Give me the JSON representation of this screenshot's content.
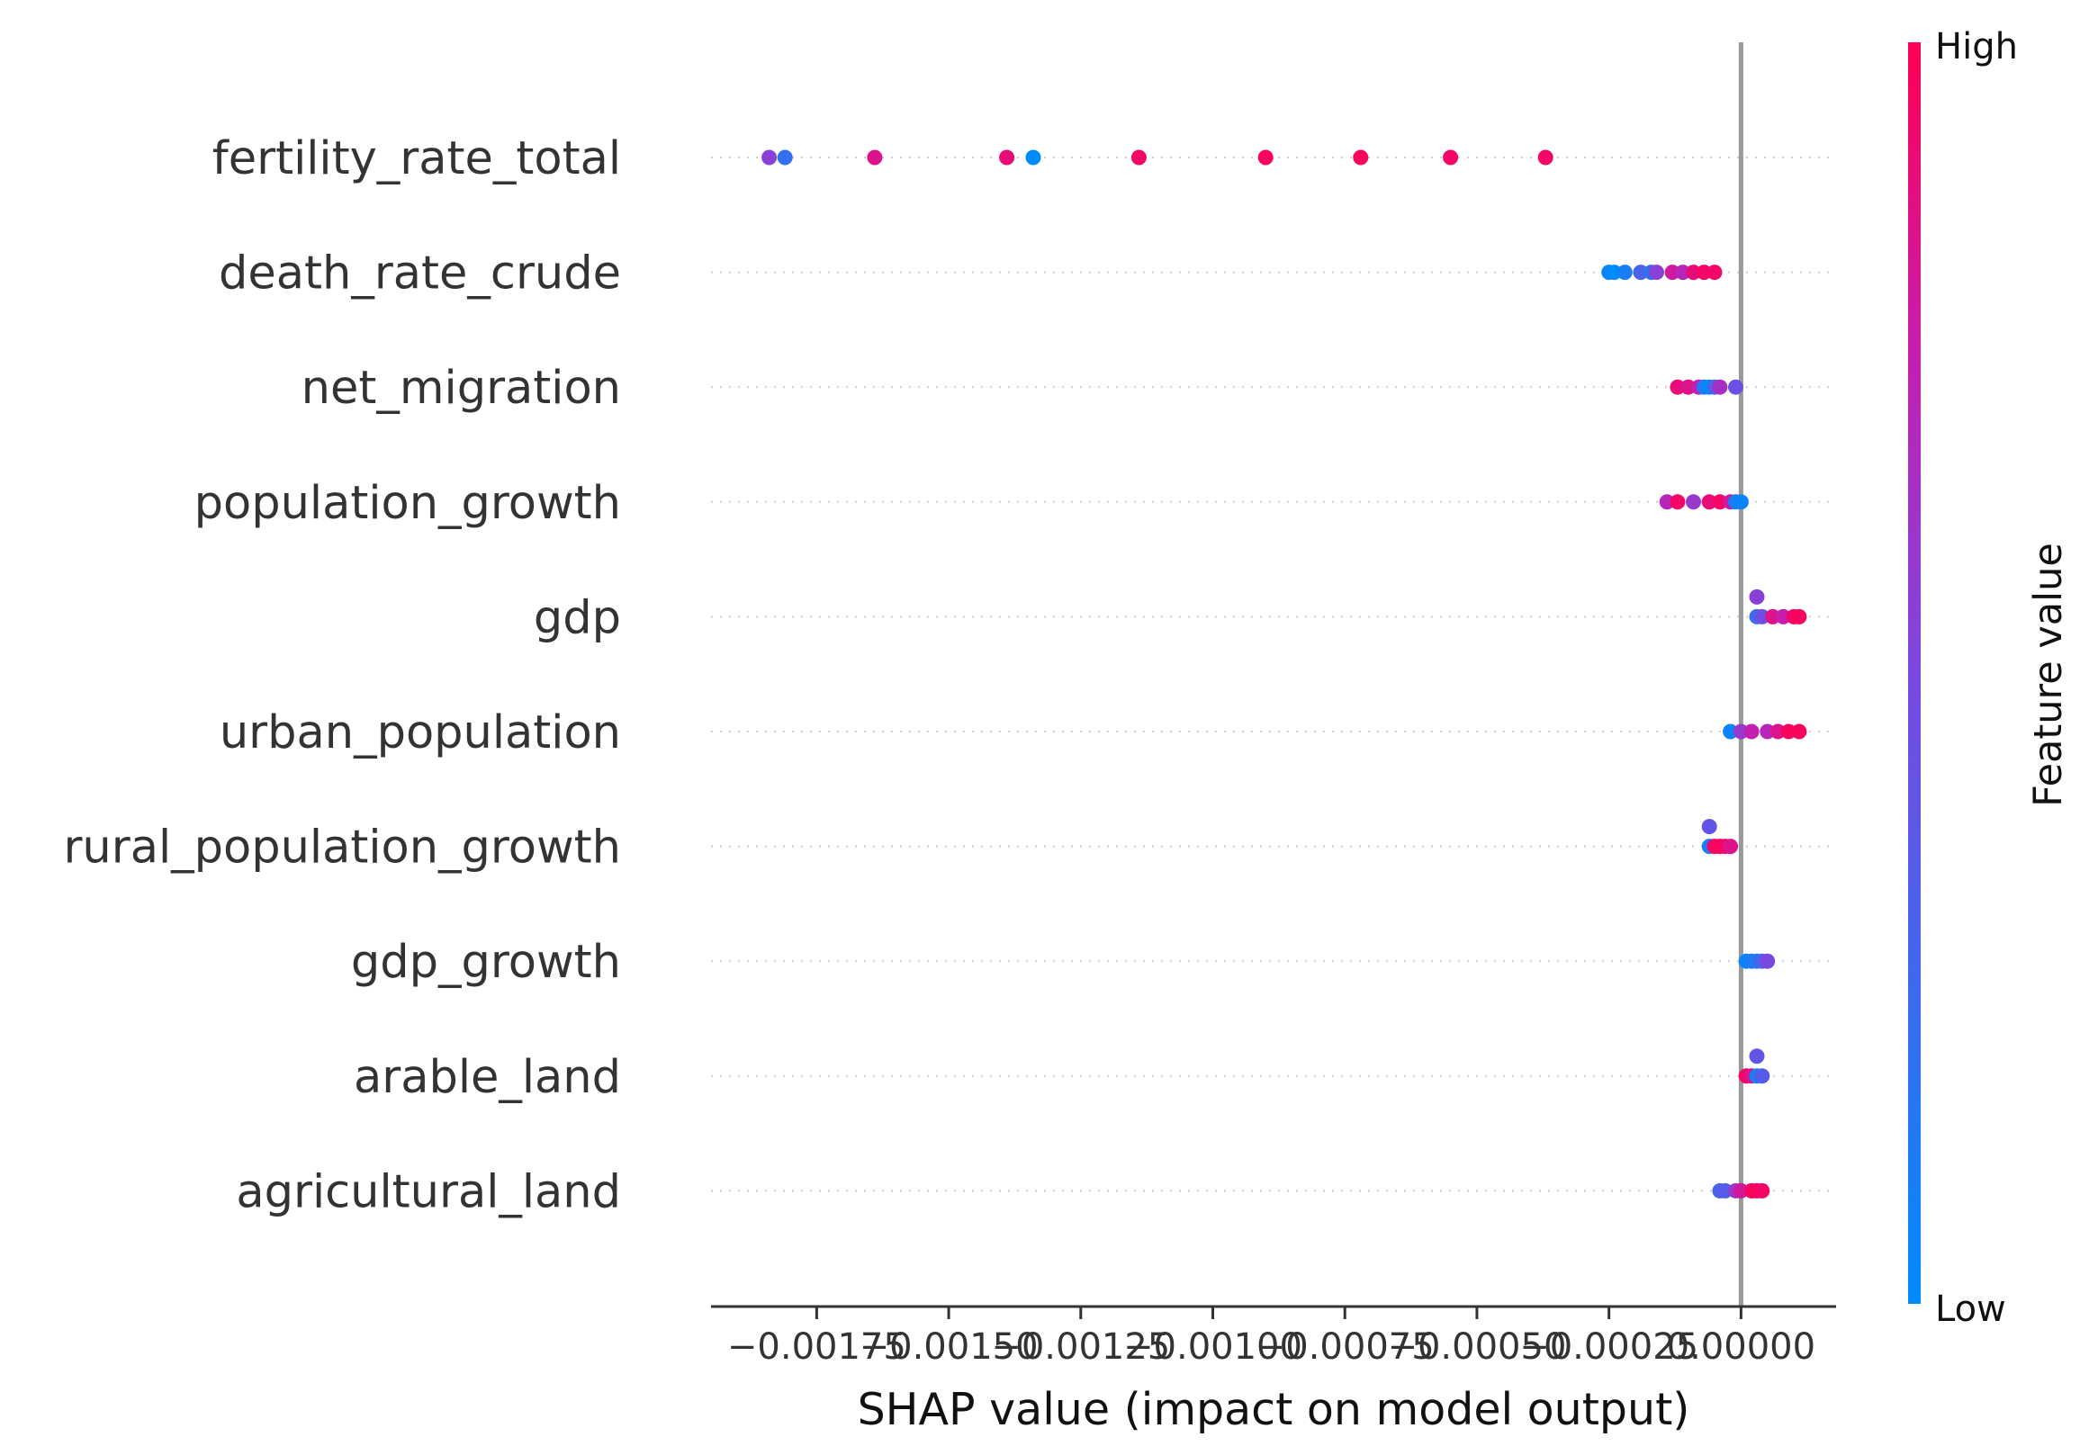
{
  "chart_data": {
    "type": "scatter",
    "subtype": "shap-beeswarm",
    "xlabel": "SHAP value (impact on model output)",
    "xlim": [
      -0.00195,
      0.00018
    ],
    "x_ticks": [
      -0.00175,
      -0.0015,
      -0.00125,
      -0.001,
      -0.00075,
      -0.0005,
      -0.00025,
      0.0
    ],
    "x_tick_labels": [
      "−0.00175",
      "−0.00150",
      "−0.00125",
      "−0.00100",
      "−0.00075",
      "−0.00050",
      "−0.00025",
      "0.00000"
    ],
    "zero_line": 0.0,
    "grid": "dotted row lines",
    "colorbar": {
      "title": "Feature value",
      "high_label": "High",
      "low_label": "Low",
      "low_color": "#008bfb",
      "high_color": "#ff0052"
    },
    "features": [
      {
        "name": "fertility_rate_total",
        "points": [
          {
            "x": -0.00184,
            "y": 0,
            "v": 0.55
          },
          {
            "x": -0.00181,
            "y": 0,
            "v": 0.2
          },
          {
            "x": -0.00164,
            "y": 0,
            "v": 0.85
          },
          {
            "x": -0.00139,
            "y": 0,
            "v": 0.9
          },
          {
            "x": -0.00134,
            "y": 0,
            "v": 0.0
          },
          {
            "x": -0.00114,
            "y": 0,
            "v": 0.95
          },
          {
            "x": -0.0009,
            "y": 0,
            "v": 0.97
          },
          {
            "x": -0.00072,
            "y": 0,
            "v": 0.97
          },
          {
            "x": -0.00055,
            "y": 0,
            "v": 0.95
          },
          {
            "x": -0.00037,
            "y": 0,
            "v": 0.95
          }
        ]
      },
      {
        "name": "death_rate_crude",
        "points": [
          {
            "x": -0.00025,
            "y": 0,
            "v": 0.05
          },
          {
            "x": -0.00024,
            "y": 0,
            "v": 0.0
          },
          {
            "x": -0.00022,
            "y": 0,
            "v": 0.1
          },
          {
            "x": -0.00019,
            "y": 0,
            "v": 0.3
          },
          {
            "x": -0.00017,
            "y": 0,
            "v": 0.2
          },
          {
            "x": -0.00016,
            "y": 0,
            "v": 0.55
          },
          {
            "x": -0.00013,
            "y": 0,
            "v": 0.8
          },
          {
            "x": -0.00011,
            "y": 0,
            "v": 0.7
          },
          {
            "x": -9e-05,
            "y": 0,
            "v": 0.9
          },
          {
            "x": -7e-05,
            "y": 0,
            "v": 0.95
          },
          {
            "x": -5e-05,
            "y": 0,
            "v": 0.95
          }
        ]
      },
      {
        "name": "net_migration",
        "points": [
          {
            "x": -0.00012,
            "y": 0,
            "v": 0.9
          },
          {
            "x": -0.0001,
            "y": 0,
            "v": 0.85
          },
          {
            "x": -8e-05,
            "y": 0,
            "v": 0.75
          },
          {
            "x": -7e-05,
            "y": 0,
            "v": 0.15
          },
          {
            "x": -6e-05,
            "y": 0,
            "v": 0.0
          },
          {
            "x": -5e-05,
            "y": 0,
            "v": 0.3
          },
          {
            "x": -4e-05,
            "y": 0,
            "v": 0.65
          },
          {
            "x": -1e-05,
            "y": 0,
            "v": 0.45
          }
        ]
      },
      {
        "name": "population_growth",
        "points": [
          {
            "x": -0.00014,
            "y": 0,
            "v": 0.7
          },
          {
            "x": -0.00012,
            "y": 0,
            "v": 0.95
          },
          {
            "x": -9e-05,
            "y": 0,
            "v": 0.6
          },
          {
            "x": -6e-05,
            "y": 0,
            "v": 0.9
          },
          {
            "x": -4e-05,
            "y": 0,
            "v": 0.95
          },
          {
            "x": -2e-05,
            "y": 0,
            "v": 0.8
          },
          {
            "x": -1e-05,
            "y": 0,
            "v": 0.1
          },
          {
            "x": 0.0,
            "y": 0,
            "v": 0.05
          }
        ]
      },
      {
        "name": "gdp",
        "points": [
          {
            "x": 3e-05,
            "y": 0.2,
            "v": 0.55
          },
          {
            "x": 3e-05,
            "y": 0.0,
            "v": 0.25
          },
          {
            "x": 4e-05,
            "y": 0.0,
            "v": 0.45
          },
          {
            "x": 6e-05,
            "y": 0.0,
            "v": 0.85
          },
          {
            "x": 8e-05,
            "y": 0.0,
            "v": 0.75
          },
          {
            "x": 0.0001,
            "y": 0.0,
            "v": 0.95
          },
          {
            "x": 0.00011,
            "y": 0.0,
            "v": 0.97
          }
        ]
      },
      {
        "name": "urban_population",
        "points": [
          {
            "x": -2e-05,
            "y": 0,
            "v": 0.05
          },
          {
            "x": 0.0,
            "y": 0,
            "v": 0.6
          },
          {
            "x": 2e-05,
            "y": 0,
            "v": 0.75
          },
          {
            "x": 5e-05,
            "y": 0,
            "v": 0.7
          },
          {
            "x": 7e-05,
            "y": 0,
            "v": 0.85
          },
          {
            "x": 9e-05,
            "y": 0,
            "v": 0.97
          },
          {
            "x": 0.00011,
            "y": 0,
            "v": 0.97
          }
        ]
      },
      {
        "name": "rural_population_growth",
        "points": [
          {
            "x": -6e-05,
            "y": 0.2,
            "v": 0.4
          },
          {
            "x": -6e-05,
            "y": 0.0,
            "v": 0.1
          },
          {
            "x": -5e-05,
            "y": 0.0,
            "v": 0.95
          },
          {
            "x": -4e-05,
            "y": 0.0,
            "v": 0.97
          },
          {
            "x": -3e-05,
            "y": 0.0,
            "v": 0.95
          },
          {
            "x": -2e-05,
            "y": 0.0,
            "v": 0.85
          }
        ]
      },
      {
        "name": "gdp_growth",
        "points": [
          {
            "x": 1e-05,
            "y": 0,
            "v": 0.05
          },
          {
            "x": 2e-05,
            "y": 0,
            "v": 0.1
          },
          {
            "x": 3e-05,
            "y": 0,
            "v": 0.15
          },
          {
            "x": 4e-05,
            "y": 0,
            "v": 0.3
          },
          {
            "x": 5e-05,
            "y": 0,
            "v": 0.5
          }
        ]
      },
      {
        "name": "arable_land",
        "points": [
          {
            "x": 3e-05,
            "y": 0.2,
            "v": 0.4
          },
          {
            "x": 1e-05,
            "y": 0.0,
            "v": 0.95
          },
          {
            "x": 2e-05,
            "y": 0.0,
            "v": 0.85
          },
          {
            "x": 3e-05,
            "y": 0.0,
            "v": 0.1
          },
          {
            "x": 4e-05,
            "y": 0.0,
            "v": 0.35
          }
        ]
      },
      {
        "name": "agricultural_land",
        "points": [
          {
            "x": -4e-05,
            "y": 0,
            "v": 0.3
          },
          {
            "x": -3e-05,
            "y": 0,
            "v": 0.35
          },
          {
            "x": -1e-05,
            "y": 0,
            "v": 0.6
          },
          {
            "x": 0.0,
            "y": 0,
            "v": 0.8
          },
          {
            "x": 2e-05,
            "y": 0,
            "v": 0.95
          },
          {
            "x": 3e-05,
            "y": 0,
            "v": 0.97
          },
          {
            "x": 4e-05,
            "y": 0,
            "v": 0.95
          }
        ]
      }
    ]
  }
}
